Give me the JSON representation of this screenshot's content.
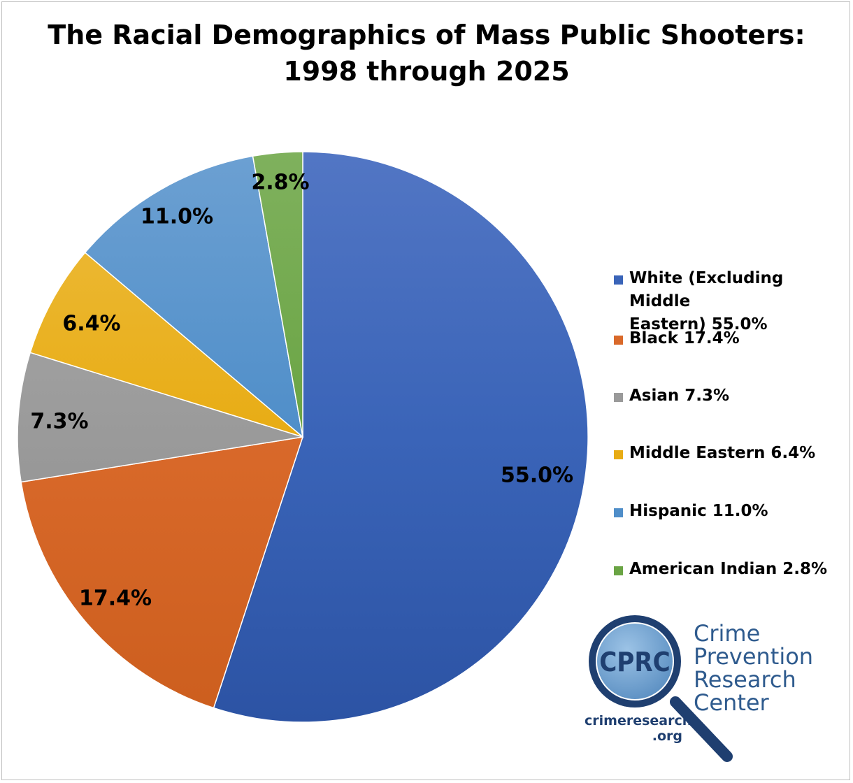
{
  "title_lines": [
    "The Racial Demographics of Mass Public Shooters:",
    "1998 through 2025"
  ],
  "chart_data": {
    "type": "pie",
    "title": "The Racial Demographics of Mass Public Shooters: 1998 through 2025",
    "legend_position": "right",
    "start_angle": "12 o'clock, clockwise",
    "slices": [
      {
        "name": "White (Excluding Middle Eastern)",
        "value": 55.0,
        "label": "55.0%",
        "legend": "White (Excluding Middle\nEastern) 55.0%",
        "color": "#3a64b8",
        "color_light": "#5276c4",
        "color_dark": "#2c53a4"
      },
      {
        "name": "Black",
        "value": 17.4,
        "label": "17.4%",
        "legend": "Black 17.4%",
        "color": "#d9692a",
        "color_light": "#e38453",
        "color_dark": "#cc5e1e"
      },
      {
        "name": "Asian",
        "value": 7.3,
        "label": "7.3%",
        "legend": "Asian 7.3%",
        "color": "#9a9a9a",
        "color_light": "#ababab",
        "color_dark": "#8a8a8a"
      },
      {
        "name": "Middle Eastern",
        "value": 6.4,
        "label": "6.4%",
        "legend": "Middle Eastern 6.4%",
        "color": "#e8ac14",
        "color_light": "#edbd40",
        "color_dark": "#dca10c"
      },
      {
        "name": "Hispanic",
        "value": 11.0,
        "label": "11.0%",
        "legend": "Hispanic 11.0%",
        "color": "#4f8ec9",
        "color_light": "#6ca0d2",
        "color_dark": "#3e7dba"
      },
      {
        "name": "American Indian",
        "value": 2.8,
        "label": "2.8%",
        "legend": "American Indian 2.8%",
        "color": "#6aa444",
        "color_light": "#7fb15d",
        "color_dark": "#5b963a"
      }
    ]
  },
  "logo": {
    "monogram": "CPRC",
    "words": "Crime\nPrevention\nResearch\nCenter",
    "url": "crimeresearch\n.org",
    "colors": {
      "ring": "#1f3f70",
      "lens": "#6fa3d1",
      "text": "#2f5b8e"
    }
  }
}
